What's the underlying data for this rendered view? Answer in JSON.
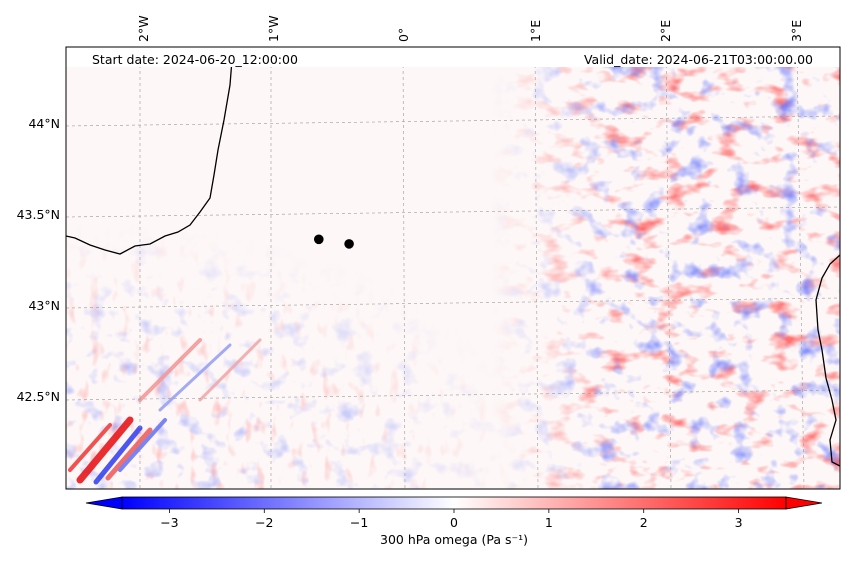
{
  "map": {
    "start_label": "Start date: 2024-06-20_12:00:00",
    "valid_label": "Valid_date: 2024-06-21T03:00:00.00",
    "lon_labels": [
      "2°W",
      "1°W",
      "0°",
      "1°E",
      "2°E",
      "3°E"
    ],
    "lat_labels": [
      "44°N",
      "43.5°N",
      "43°N",
      "42.5°N"
    ],
    "points": [
      {
        "name": "point-1",
        "lon": -0.64,
        "lat": 43.39
      },
      {
        "name": "point-2",
        "lon": -0.41,
        "lat": 43.36
      }
    ]
  },
  "colorbar": {
    "label": "300 hPa omega (Pa s⁻¹)",
    "ticks": [
      "−3",
      "−2",
      "−1",
      "0",
      "1",
      "2",
      "3"
    ],
    "min": -3.5,
    "max": 3.5,
    "low_color": "#0000ff",
    "mid_color": "#ffffff",
    "high_color": "#ff0000"
  }
}
